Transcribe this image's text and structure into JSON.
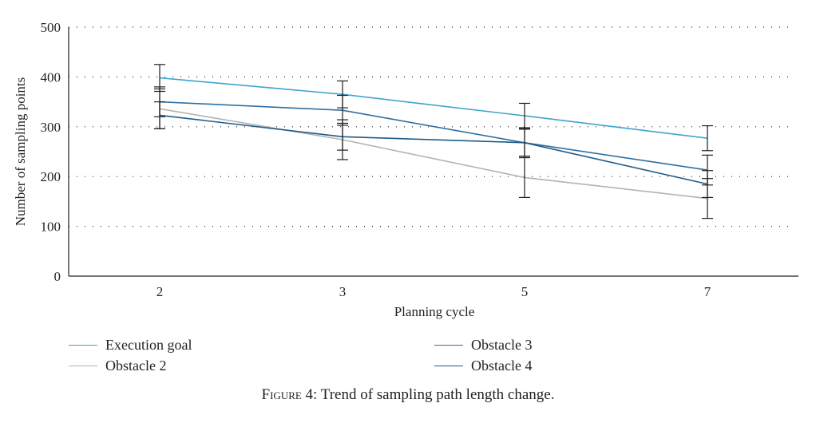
{
  "chart_data": {
    "type": "line",
    "title": "",
    "xlabel": "Planning cycle",
    "ylabel": "Number of sampling points",
    "categories": [
      "2",
      "3",
      "5",
      "7"
    ],
    "ylim": [
      0,
      500
    ],
    "yticks": [
      0,
      100,
      200,
      300,
      400,
      500
    ],
    "grid": "horizontal dotted",
    "series": [
      {
        "name": "Execution goal",
        "color": "#3fa3cf",
        "values": [
          398,
          365,
          322,
          277
        ],
        "error": [
          27,
          27,
          25,
          25
        ]
      },
      {
        "name": "Obstacle 2",
        "color": "#b3b3b3",
        "values": [
          336,
          274,
          198,
          156
        ],
        "error": [
          40,
          40,
          40,
          40
        ]
      },
      {
        "name": "Obstacle 3",
        "color": "#2f6fa3",
        "values": [
          350,
          333,
          268,
          213
        ],
        "error": [
          30,
          30,
          30,
          30
        ]
      },
      {
        "name": "Obstacle 4",
        "color": "#1d5c87",
        "values": [
          323,
          280,
          268,
          185
        ],
        "error": [
          27,
          27,
          27,
          27
        ]
      }
    ]
  },
  "legend": {
    "items": [
      {
        "label": "Execution goal",
        "color": "#3fa3cf"
      },
      {
        "label": "Obstacle 2",
        "color": "#b3b3b3"
      },
      {
        "label": "Obstacle 3",
        "color": "#2f6fa3"
      },
      {
        "label": "Obstacle 4",
        "color": "#1d5c87"
      }
    ]
  },
  "caption": {
    "prefix": "Figure 4:",
    "text": "Trend of sampling path length change."
  }
}
